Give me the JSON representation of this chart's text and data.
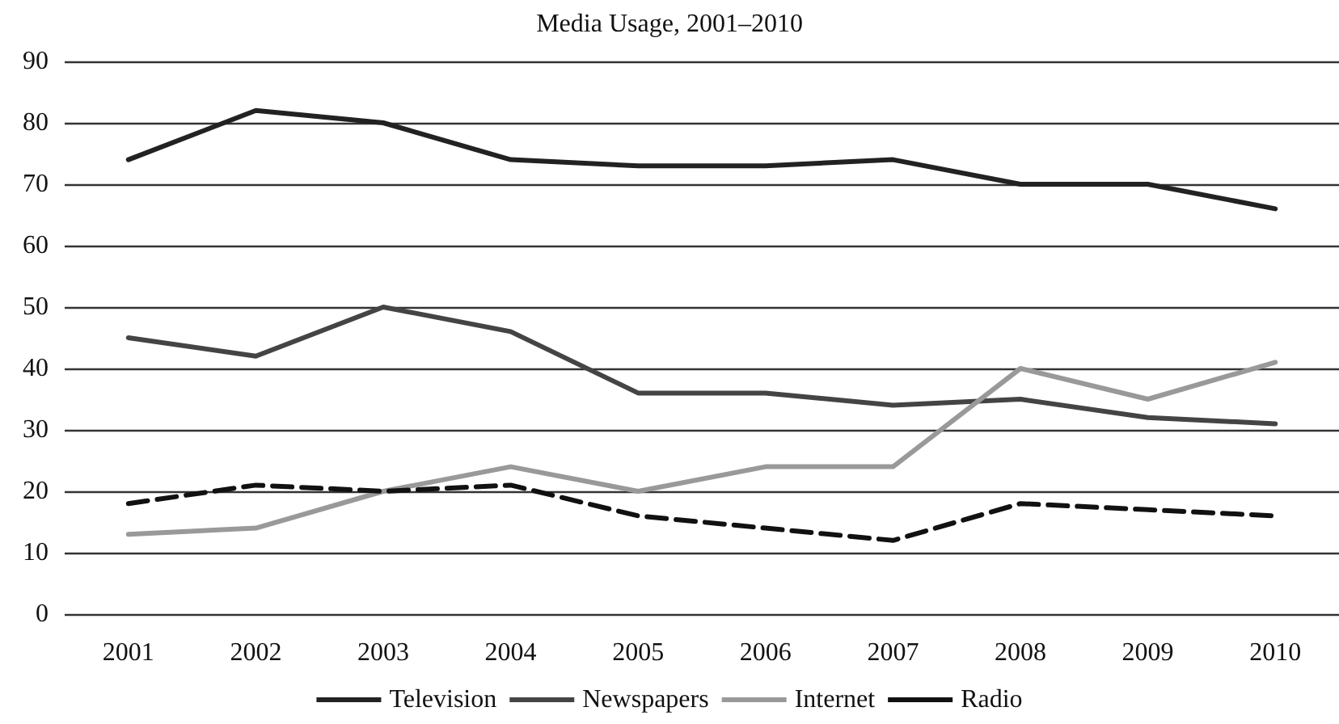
{
  "chart_data": {
    "type": "line",
    "title": "Media Usage, 2001–2010",
    "categories": [
      "2001",
      "2002",
      "2003",
      "2004",
      "2005",
      "2006",
      "2007",
      "2008",
      "2009",
      "2010"
    ],
    "series": [
      {
        "name": "Television",
        "color": "#222222",
        "line_style": "solid",
        "values": [
          74,
          82,
          80,
          74,
          73,
          73,
          74,
          70,
          70,
          66
        ]
      },
      {
        "name": "Newspapers",
        "color": "#444444",
        "line_style": "solid",
        "values": [
          45,
          42,
          50,
          46,
          36,
          36,
          34,
          35,
          32,
          31
        ]
      },
      {
        "name": "Internet",
        "color": "#999999",
        "line_style": "solid",
        "values": [
          13,
          14,
          20,
          24,
          20,
          24,
          24,
          40,
          35,
          41
        ]
      },
      {
        "name": "Radio",
        "color": "#111111",
        "line_style": "dashed",
        "values": [
          18,
          21,
          20,
          21,
          16,
          14,
          12,
          18,
          17,
          16
        ]
      }
    ],
    "ylim": [
      0,
      90
    ],
    "yticks": [
      0,
      10,
      20,
      30,
      40,
      50,
      60,
      70,
      80,
      90
    ],
    "grid": "y",
    "legend": "bottom",
    "marker": "none"
  }
}
